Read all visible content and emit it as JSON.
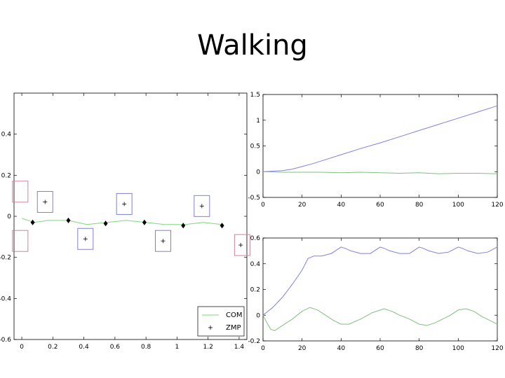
{
  "slide": {
    "title": "Walking"
  },
  "chart_data": [
    {
      "type": "line",
      "xlim": [
        -0.05,
        1.45
      ],
      "ylim": [
        -0.6,
        0.6
      ],
      "xticks": [
        0,
        0.2,
        0.4,
        0.6,
        0.8,
        1,
        1.2,
        1.4
      ],
      "xtick_labels": [
        "0",
        "0.2",
        "0.4",
        "0.6",
        "0.8",
        "1",
        "1.2",
        "1.4"
      ],
      "yticks": [
        -0.6,
        -0.4,
        -0.2,
        0,
        0.2,
        0.4
      ],
      "ytick_labels": [
        "-0.6",
        "-0.4",
        "-0.2",
        "0",
        "0.2",
        "0.4"
      ],
      "series": [
        {
          "name": "COM",
          "color": "#7fd77f",
          "x": [
            0.0,
            0.08,
            0.17,
            0.3,
            0.42,
            0.55,
            0.67,
            0.8,
            0.92,
            1.05,
            1.17,
            1.29
          ],
          "y": [
            -0.01,
            -0.03,
            -0.02,
            -0.02,
            -0.04,
            -0.03,
            -0.02,
            -0.03,
            -0.04,
            -0.04,
            -0.03,
            -0.04
          ]
        },
        {
          "name": "ZMP",
          "color": "#000000",
          "x": [
            0.15,
            0.41,
            0.66,
            0.91,
            1.16,
            1.41
          ],
          "y": [
            0.07,
            -0.11,
            0.06,
            -0.12,
            0.05,
            -0.14
          ]
        }
      ],
      "waypoints": {
        "color": "#000000",
        "x": [
          0.07,
          0.3,
          0.54,
          0.79,
          1.04,
          1.29
        ],
        "y": [
          -0.03,
          -0.02,
          -0.035,
          -0.03,
          -0.045,
          -0.045
        ]
      },
      "footprints": [
        {
          "x": 0.15,
          "y": 0.07,
          "color": "#8080d0"
        },
        {
          "x": 0.41,
          "y": -0.11,
          "color": "#8080d0"
        },
        {
          "x": 0.66,
          "y": 0.06,
          "color": "#8080d0"
        },
        {
          "x": 0.91,
          "y": -0.12,
          "color": "#8080d0"
        },
        {
          "x": 1.16,
          "y": 0.05,
          "color": "#8080d0"
        },
        {
          "x": 1.42,
          "y": -0.14,
          "color": "#d080a0"
        },
        {
          "x": -0.01,
          "y": 0.12,
          "color": "#d080a0"
        },
        {
          "x": -0.01,
          "y": -0.12,
          "color": "#d080a0"
        }
      ],
      "legend": {
        "placement": "bottom-right",
        "entries": [
          "COM",
          "ZMP"
        ]
      }
    },
    {
      "type": "line",
      "xlim": [
        0,
        120
      ],
      "ylim": [
        -0.5,
        1.5
      ],
      "xticks": [
        0,
        20,
        40,
        60,
        80,
        100,
        120
      ],
      "xtick_labels": [
        "0",
        "20",
        "40",
        "60",
        "80",
        "100",
        "120"
      ],
      "yticks": [
        -0.5,
        0,
        0.5,
        1,
        1.5
      ],
      "ytick_labels": [
        "-0.5",
        "0",
        "0.5",
        "1",
        "1.5"
      ],
      "series": [
        {
          "color": "#8080e0",
          "x": [
            0,
            5,
            10,
            15,
            20,
            25,
            30,
            40,
            50,
            60,
            70,
            80,
            90,
            100,
            110,
            120
          ],
          "y": [
            0,
            0.01,
            0.02,
            0.05,
            0.1,
            0.15,
            0.21,
            0.33,
            0.45,
            0.56,
            0.68,
            0.8,
            0.92,
            1.04,
            1.16,
            1.28
          ]
        },
        {
          "color": "#80c080",
          "x": [
            0,
            10,
            20,
            30,
            40,
            50,
            60,
            70,
            80,
            90,
            100,
            110,
            120
          ],
          "y": [
            0,
            -0.01,
            -0.01,
            -0.01,
            -0.02,
            -0.01,
            -0.02,
            -0.03,
            -0.02,
            -0.04,
            -0.03,
            -0.03,
            -0.04
          ]
        }
      ]
    },
    {
      "type": "line",
      "xlim": [
        0,
        120
      ],
      "ylim": [
        -0.2,
        0.6
      ],
      "xticks": [
        0,
        20,
        40,
        60,
        80,
        100,
        120
      ],
      "xtick_labels": [
        "0",
        "20",
        "40",
        "60",
        "80",
        "100",
        "120"
      ],
      "yticks": [
        -0.2,
        0,
        0.2,
        0.4,
        0.6
      ],
      "ytick_labels": [
        "-0.2",
        "0",
        "0.2",
        "0.4",
        "0.6"
      ],
      "series": [
        {
          "color": "#8080e0",
          "x": [
            0,
            5,
            10,
            15,
            20,
            23,
            26,
            30,
            35,
            40,
            42,
            45,
            50,
            55,
            60,
            62,
            65,
            70,
            75,
            80,
            82,
            85,
            90,
            95,
            100,
            102,
            105,
            110,
            115,
            120
          ],
          "y": [
            0,
            0.06,
            0.14,
            0.24,
            0.35,
            0.44,
            0.46,
            0.46,
            0.48,
            0.53,
            0.52,
            0.5,
            0.48,
            0.48,
            0.53,
            0.52,
            0.5,
            0.48,
            0.48,
            0.53,
            0.52,
            0.5,
            0.48,
            0.49,
            0.53,
            0.52,
            0.5,
            0.48,
            0.49,
            0.53
          ]
        },
        {
          "color": "#80c080",
          "x": [
            0,
            2,
            4,
            6,
            10,
            15,
            20,
            24,
            28,
            32,
            36,
            40,
            44,
            50,
            56,
            62,
            66,
            70,
            75,
            80,
            84,
            88,
            92,
            96,
            100,
            104,
            108,
            112,
            116,
            120
          ],
          "y": [
            0,
            -0.06,
            -0.11,
            -0.12,
            -0.08,
            -0.03,
            0.03,
            0.06,
            0.04,
            0.0,
            -0.04,
            -0.07,
            -0.07,
            -0.03,
            0.02,
            0.05,
            0.03,
            0.0,
            -0.03,
            -0.07,
            -0.08,
            -0.06,
            -0.03,
            0.0,
            0.04,
            0.05,
            0.03,
            -0.01,
            -0.04,
            -0.07
          ]
        }
      ]
    }
  ]
}
